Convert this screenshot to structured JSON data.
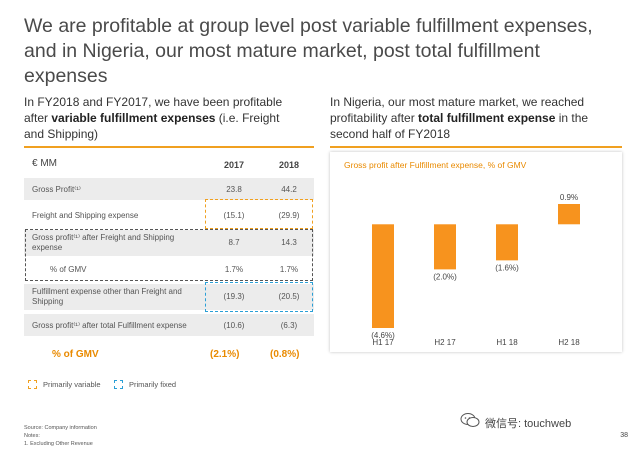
{
  "title": "We are profitable at group level post variable fulfillment expenses, and in Nigeria, our most mature market, post total fulfillment expenses",
  "left_subtitle": {
    "pre": "In FY2018 and FY2017,  we have been profitable after ",
    "bold": "variable fulfillment expenses",
    "post": " (i.e. Freight and Shipping)"
  },
  "right_subtitle": {
    "pre": "In Nigeria, our most mature market, we reached profitability after ",
    "bold": "total fulfillment expense",
    "post": " in the second half of FY2018"
  },
  "table": {
    "unit": "€ MM",
    "col_2017": "2017",
    "col_2018": "2018",
    "rows": [
      {
        "label": "Gross Profit⁽¹⁾",
        "v2017": "23.8",
        "v2018": "44.2"
      },
      {
        "label": "Freight and Shipping expense",
        "v2017": "(15.1)",
        "v2018": "(29.9)"
      },
      {
        "label": "Gross profit⁽¹⁾ after Freight and Shipping expense",
        "v2017": "8.7",
        "v2018": "14.3"
      },
      {
        "label": "% of GMV",
        "v2017": "1.7%",
        "v2018": "1.7%"
      },
      {
        "label": "Fulfillment expense other than Freight and Shipping",
        "v2017": "(19.3)",
        "v2018": "(20.5)"
      },
      {
        "label": "Gross profit⁽¹⁾ after total Fulfillment expense",
        "v2017": "(10.6)",
        "v2018": "(6.3)"
      }
    ],
    "gmv_label": "% of GMV",
    "gmv_2017": "(2.1%)",
    "gmv_2018": "(0.8%)"
  },
  "legend": {
    "variable": "Primarily variable",
    "fixed": "Primarily fixed"
  },
  "footnotes": {
    "source": "Source: Company information",
    "notes": "Notes:",
    "note1": "1.    Excluding Other Revenue"
  },
  "chart_data": {
    "type": "bar",
    "title": "Gross profit  after Fulfillment expense, % of GMV",
    "categories": [
      "H1 17",
      "H2 17",
      "H1 18",
      "H2 18"
    ],
    "values": [
      -4.6,
      -2.0,
      -1.6,
      0.9
    ],
    "data_labels": [
      "(4.6%)",
      "(2.0%)",
      "(1.6%)",
      "0.9%"
    ],
    "ylim": [
      -4.6,
      0.9
    ],
    "color": "#f7931e",
    "grid": false,
    "legend": "none"
  },
  "colors": {
    "orange": "#f0a020",
    "blue": "#2a9fd6",
    "dark_dash": "#555555",
    "gmv_text": "#e98a00"
  },
  "page_number": "38",
  "watermark": "微信号: touchweb"
}
